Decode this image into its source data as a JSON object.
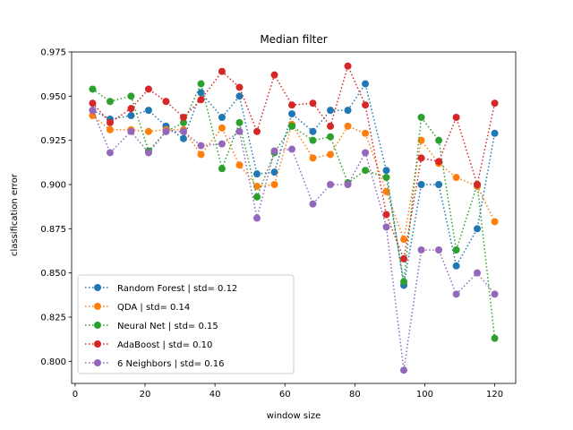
{
  "chart_data": {
    "type": "line",
    "title": "Median filter",
    "xlabel": "window size",
    "ylabel": "classification error",
    "xlim": [
      -1,
      126
    ],
    "ylim": [
      0.7875,
      0.975
    ],
    "xticks": [
      0,
      20,
      40,
      60,
      80,
      100,
      120
    ],
    "xtick_labels": [
      "0",
      "20",
      "40",
      "60",
      "80",
      "100",
      "120"
    ],
    "yticks": [
      0.8,
      0.825,
      0.85,
      0.875,
      0.9,
      0.925,
      0.95,
      0.975
    ],
    "ytick_labels": [
      "0.800",
      "0.825",
      "0.850",
      "0.875",
      "0.900",
      "0.925",
      "0.950",
      "0.975"
    ],
    "grid": false,
    "legend_position": "lower-left",
    "x": [
      5,
      10,
      16,
      21,
      26,
      31,
      36,
      42,
      47,
      52,
      57,
      62,
      68,
      73,
      78,
      83,
      89,
      94,
      99,
      104,
      109,
      115,
      120
    ],
    "series": [
      {
        "name": "Random Forest | std= 0.12",
        "color": "#1f77b4",
        "values": [
          0.942,
          0.937,
          0.939,
          0.942,
          0.933,
          0.926,
          0.952,
          0.938,
          0.95,
          0.906,
          0.907,
          0.94,
          0.93,
          0.942,
          0.942,
          0.957,
          0.908,
          0.843,
          0.9,
          0.9,
          0.854,
          0.875,
          0.929
        ]
      },
      {
        "name": "QDA | std= 0.14",
        "color": "#ff7f0e",
        "values": [
          0.939,
          0.931,
          0.931,
          0.93,
          0.931,
          0.931,
          0.917,
          0.932,
          0.911,
          0.899,
          0.9,
          0.934,
          0.915,
          0.917,
          0.933,
          0.929,
          0.896,
          0.869,
          0.925,
          0.912,
          0.904,
          0.899,
          0.879
        ]
      },
      {
        "name": "Neural Net | std= 0.15",
        "color": "#2ca02c",
        "values": [
          0.954,
          0.947,
          0.95,
          0.919,
          0.93,
          0.935,
          0.957,
          0.909,
          0.935,
          0.893,
          0.918,
          0.933,
          0.925,
          0.927,
          0.901,
          0.908,
          0.904,
          0.845,
          0.938,
          0.925,
          0.863,
          0.9,
          0.813
        ]
      },
      {
        "name": "AdaBoost | std= 0.10",
        "color": "#d62728",
        "values": [
          0.946,
          0.935,
          0.943,
          0.954,
          0.947,
          0.938,
          0.948,
          0.964,
          0.955,
          0.93,
          0.962,
          0.945,
          0.946,
          0.933,
          0.967,
          0.945,
          0.883,
          0.858,
          0.915,
          0.913,
          0.938,
          0.9,
          0.946
        ]
      },
      {
        "name": "6 Neighbors | std= 0.16",
        "color": "#9467bd",
        "values": [
          0.942,
          0.918,
          0.93,
          0.918,
          0.93,
          0.93,
          0.922,
          0.923,
          0.93,
          0.881,
          0.919,
          0.92,
          0.889,
          0.9,
          0.9,
          0.918,
          0.876,
          0.795,
          0.863,
          0.863,
          0.838,
          0.85,
          0.838
        ]
      }
    ]
  }
}
